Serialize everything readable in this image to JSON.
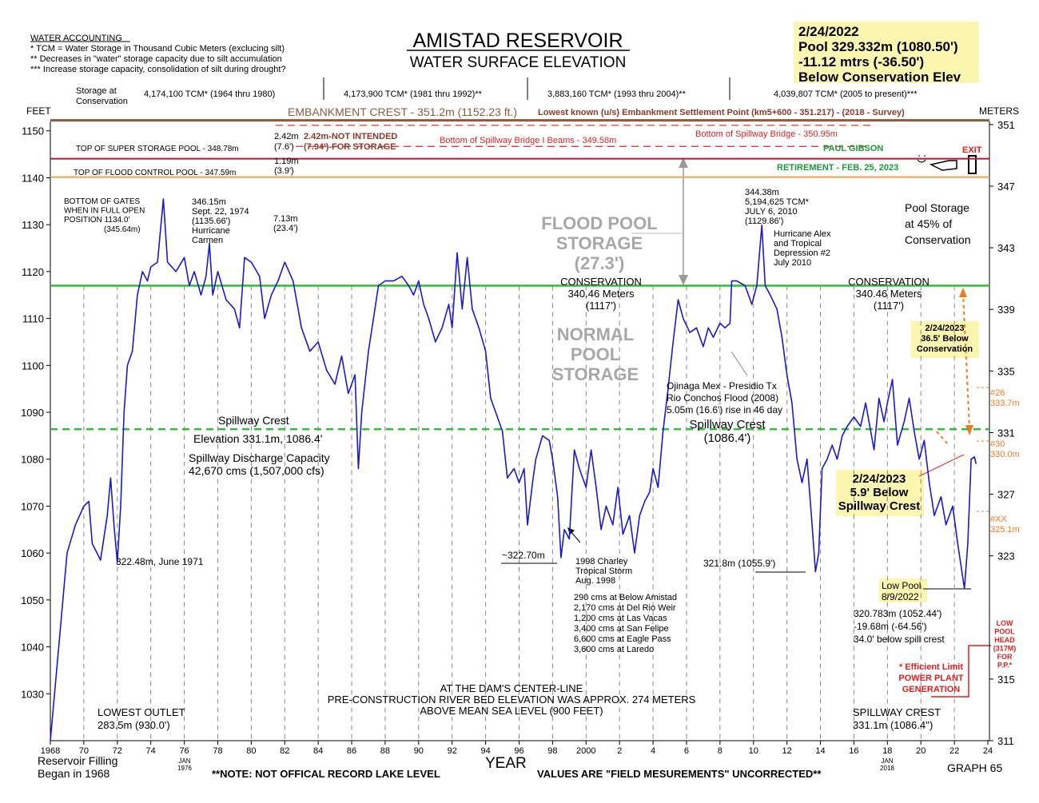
{
  "chart_data": {
    "type": "line",
    "title": "AMISTAD RESERVOIR",
    "subtitle": "WATER SURFACE ELEVATION",
    "x_label": "YEAR",
    "y_label": "FEET",
    "y2_label": "METERS",
    "xlim": [
      1968,
      2024
    ],
    "xticks": [
      1968,
      {
        "value": 1970,
        "label": "70"
      },
      {
        "value": 1972,
        "label": "72"
      },
      {
        "value": 1974,
        "label": "74"
      },
      {
        "value": 1976,
        "label": "76"
      },
      {
        "value": 1978,
        "label": "78"
      },
      {
        "value": 1980,
        "label": "80"
      },
      {
        "value": 1982,
        "label": "82"
      },
      {
        "value": 1984,
        "label": "84"
      },
      {
        "value": 1986,
        "label": "86"
      },
      {
        "value": 1988,
        "label": "88"
      },
      {
        "value": 1990,
        "label": "90"
      },
      {
        "value": 1992,
        "label": "92"
      },
      {
        "value": 1994,
        "label": "94"
      },
      {
        "value": 1996,
        "label": "96"
      },
      {
        "value": 1998,
        "label": "98"
      },
      2000,
      {
        "value": 2002,
        "label": "2"
      },
      {
        "value": 2004,
        "label": "4"
      },
      {
        "value": 2006,
        "label": "6"
      },
      {
        "value": 2008,
        "label": "8"
      },
      {
        "value": 2010,
        "label": "10"
      },
      {
        "value": 2012,
        "label": "12"
      },
      {
        "value": 2014,
        "label": "14"
      },
      {
        "value": 2016,
        "label": "16"
      },
      {
        "value": 2018,
        "label": "18"
      },
      {
        "value": 2020,
        "label": "20"
      },
      {
        "value": 2022,
        "label": "22"
      },
      {
        "value": 2024,
        "label": "24"
      }
    ],
    "ylim": [
      1020,
      1152
    ],
    "yticks": [
      1030,
      1040,
      1050,
      1060,
      1070,
      1080,
      1090,
      1100,
      1110,
      1120,
      1130,
      1140,
      1150
    ],
    "y2lim": [
      311,
      351.2
    ],
    "y2ticks": [
      311,
      315,
      323,
      327,
      331,
      335,
      339,
      343,
      347,
      351
    ],
    "grid": true,
    "x": [
      1968.0,
      1968.5,
      1969.0,
      1969.5,
      1970.0,
      1970.3,
      1970.5,
      1971.0,
      1971.4,
      1971.6,
      1971.8,
      1972.0,
      1972.2,
      1972.4,
      1972.6,
      1972.9,
      1973.2,
      1973.5,
      1973.8,
      1974.0,
      1974.4,
      1974.75,
      1975.0,
      1975.5,
      1976.0,
      1976.3,
      1976.6,
      1977.0,
      1977.3,
      1977.5,
      1977.7,
      1978.0,
      1978.5,
      1979.0,
      1979.3,
      1979.6,
      1980.0,
      1980.5,
      1980.8,
      1981.2,
      1981.6,
      1982.0,
      1982.5,
      1983.0,
      1983.5,
      1984.0,
      1984.5,
      1985.0,
      1985.4,
      1985.8,
      1986.2,
      1986.4,
      1986.6,
      1987.0,
      1987.3,
      1987.6,
      1988.0,
      1988.5,
      1989.0,
      1989.4,
      1989.7,
      1990.0,
      1990.3,
      1990.6,
      1991.0,
      1991.4,
      1991.8,
      1992.0,
      1992.3,
      1992.6,
      1992.9,
      1993.2,
      1993.6,
      1994.0,
      1994.3,
      1994.6,
      1995.0,
      1995.3,
      1995.7,
      1996.0,
      1996.3,
      1996.5,
      1996.8,
      1997.0,
      1997.4,
      1997.8,
      1998.0,
      1998.3,
      1998.5,
      1998.7,
      1999.0,
      1999.3,
      1999.6,
      2000.0,
      2000.3,
      2000.6,
      2000.9,
      2001.2,
      2001.6,
      2001.9,
      2002.2,
      2002.6,
      2002.9,
      2003.2,
      2003.5,
      2003.8,
      2004.0,
      2004.3,
      2004.6,
      2004.9,
      2005.2,
      2005.5,
      2005.8,
      2006.2,
      2006.6,
      2007.0,
      2007.3,
      2007.6,
      2008.0,
      2008.3,
      2008.6,
      2008.7,
      2009.0,
      2009.5,
      2009.9,
      2010.2,
      2010.5,
      2010.7,
      2011.0,
      2011.4,
      2011.7,
      2012.0,
      2012.3,
      2012.6,
      2012.9,
      2013.2,
      2013.5,
      2013.7,
      2013.9,
      2014.1,
      2014.4,
      2014.7,
      2015.0,
      2015.3,
      2015.6,
      2016.0,
      2016.4,
      2016.7,
      2017.0,
      2017.2,
      2017.5,
      2017.8,
      2018.0,
      2018.3,
      2018.6,
      2019.0,
      2019.3,
      2019.6,
      2019.9,
      2020.2,
      2020.5,
      2020.8,
      2021.2,
      2021.5,
      2021.9,
      2022.2,
      2022.6,
      2022.8,
      2023.0,
      2023.2,
      2023.3
    ],
    "series": [
      {
        "color": "#1a1acc",
        "values": [
          1020,
          1040,
          1060,
          1066,
          1070,
          1071,
          1062,
          1058.5,
          1068,
          1076,
          1066,
          1058,
          1070,
          1090,
          1100,
          1103,
          1115,
          1120,
          1118,
          1121,
          1122,
          1135.5,
          1122,
          1120,
          1123,
          1117,
          1120,
          1115,
          1119,
          1126,
          1115,
          1120,
          1114,
          1112,
          1108,
          1123,
          1122,
          1119,
          1110,
          1115,
          1118,
          1122,
          1118,
          1108,
          1103,
          1105,
          1099,
          1096,
          1102,
          1094,
          1098,
          1078,
          1090,
          1103,
          1110,
          1117,
          1118,
          1118,
          1119,
          1117,
          1115,
          1118,
          1113,
          1110,
          1105,
          1108,
          1113,
          1108,
          1124,
          1112,
          1123,
          1112,
          1108,
          1103,
          1093,
          1090,
          1086,
          1076,
          1078,
          1075,
          1078,
          1066,
          1075,
          1080,
          1085,
          1084,
          1080,
          1072,
          1059,
          1065,
          1063,
          1082,
          1078,
          1074,
          1082,
          1074,
          1065,
          1070,
          1066,
          1074,
          1064,
          1068,
          1060,
          1068,
          1071,
          1073,
          1078,
          1074,
          1086,
          1095,
          1105,
          1114,
          1110,
          1107,
          1108,
          1104,
          1108,
          1106,
          1109,
          1108,
          1109,
          1118,
          1118,
          1117,
          1113,
          1117,
          1129.9,
          1117,
          1115,
          1112,
          1106,
          1098,
          1092,
          1080,
          1075,
          1080,
          1066,
          1056,
          1060,
          1078,
          1080,
          1083,
          1080,
          1085,
          1087,
          1089,
          1087,
          1092,
          1086,
          1082,
          1093,
          1088,
          1092,
          1097,
          1083,
          1088,
          1093,
          1086,
          1080,
          1084,
          1075,
          1068,
          1072,
          1066,
          1070,
          1062,
          1052.4,
          1062,
          1080,
          1080.5,
          1079
        ]
      }
    ],
    "reference_lines": [
      {
        "label": "EMBANKMENT CREST - 351.2m (1152.23 ft.)",
        "value": 1152.23,
        "color": "#8b5a3c",
        "dash": false
      },
      {
        "label": "TOP  OF SUPER STORAGE POOL - 348.78m",
        "value": 348.78,
        "axis": "y2",
        "color": "#c8102e",
        "dash": false
      },
      {
        "label": "TOP OF FLOOD CONTROL POOL - 347.59m",
        "value": 347.59,
        "axis": "y2",
        "color": "#f0a050",
        "dash": false
      },
      {
        "label": "Bottom of Spillway Bridge - 350.95m",
        "value": 350.95,
        "axis": "y2",
        "color": "#dd2222",
        "dash": true
      },
      {
        "label": "Bottom of Spillway Bridge I Beams - 349.58m",
        "value": 349.58,
        "axis": "y2",
        "color": "#dd2222",
        "dash": true
      },
      {
        "value": 1117,
        "color": "#33bb33",
        "dash": false
      },
      {
        "value": 1086.4,
        "color": "#33bb33",
        "dash": true
      }
    ],
    "annotations": [
      [
        "WATER ACCOUNTING",
        "* TCM = Water Storage in Thousand Cubic Meters (exclucing silt)",
        "**   Decreases in \"water\" storage capacity due to silt accumulation",
        "*** Increase storage capacity, consolidation of silt during drought?"
      ],
      [
        "2/24/2022",
        "Pool 329.332m (1080.50')",
        "-11.12 mtrs (-36.50')",
        "Below Conservation Elev"
      ],
      [
        "Storage at",
        "Conservation"
      ],
      [
        "4,174,100 TCM* (1964 thru 1980)"
      ],
      [
        "4,173,900 TCM* (1981 thru 1992)**"
      ],
      [
        "3,883,160 TCM* (1993 thru 2004)**"
      ],
      [
        "4,039,807  TCM* (2005 to present)***"
      ],
      [
        "Lowest known (u/s) Embankment Settlement Point (km5+600 - 351.217) - (2018 - Survey)"
      ],
      [
        "2.42m",
        "(7.6')"
      ],
      [
        "2.42m-NOT INTENDED",
        "(7.94')-FOR STORAGE"
      ],
      [
        "1.19m",
        "(3.9')"
      ],
      [
        "PAUL GIBSON"
      ],
      [
        "RETIREMENT - FEB. 25, 2023"
      ],
      [
        "EXIT"
      ],
      [
        "BOTTOM OF GATES",
        "WHEN IN FULL OPEN",
        "POSITION 1134.0'"
      ],
      [
        "(345.64m)"
      ],
      [
        "346.15m",
        "Sept. 22, 1974",
        "(1135.66')",
        "Hurricane",
        "Carmen"
      ],
      [
        "7.13m",
        "(23.4')"
      ],
      [
        "FLOOD POOL",
        "STORAGE",
        "(27.3')"
      ],
      [
        "CONSERVATION",
        "340.46 Meters",
        "(1117')"
      ],
      [
        "CONSERVATION",
        "340.46 Meters",
        "(1117')"
      ],
      [
        "NORMAL",
        "POOL",
        "STORAGE"
      ],
      [
        "344.38m",
        "5,194,625 TCM*",
        "JULY 6, 2010",
        "(1129.86')"
      ],
      [
        "Hurricane Alex",
        "and Tropical",
        "Depression  #2",
        "July 2010"
      ],
      [
        "Pool Storage",
        "at 45% of",
        "Conservation"
      ],
      [
        "2/24/2023",
        "36.5' Below",
        "Conservation"
      ],
      [
        "Ojinaga Mex - Presidio Tx",
        "Rio Conchos Flood (2008)",
        "5.05m (16.6') rise in 46 day"
      ],
      [
        "Spillway Crest",
        "(1086.4')"
      ],
      [
        "Spillway Crest"
      ],
      [
        "Elevation 331.1m, 1086.4'"
      ],
      [
        "Spillway Discharge Capacity",
        "42,670 cms (1,507,000 cfs)"
      ],
      [
        "#26",
        "333.7m"
      ],
      [
        "#30",
        "330.0m"
      ],
      [
        "#XX",
        "325.1m"
      ],
      [
        "2/24/2023",
        "5.9' Below",
        "Spillway Crest"
      ],
      [
        "322.48m, June 1971"
      ],
      [
        "~322.70m"
      ],
      [
        "1998 Charley",
        "Tropical Storm",
        "Aug. 1998"
      ],
      [
        "290 cms at Below Amistad",
        "2,170 cms at Del Rio Weir",
        "1,200 cms at Las Vacas",
        "3,400 cms at San Felipe",
        "6,600 cms at Eagle Pass",
        "3,600 cms at Laredo"
      ],
      [
        "321.8m (1055.9')"
      ],
      [
        "Low Pool",
        "8/9/2022"
      ],
      [
        "320.783m (1052.44')",
        "-19.68m        (-64.56')",
        "34.0' below spill crest"
      ],
      [
        "LOW",
        "POOL",
        "HEAD",
        "(317M)",
        "FOR",
        "P.P.*"
      ],
      [
        "* Efficient Limit",
        "POWER PLANT",
        "GENERATION"
      ],
      [
        "AT THE DAM'S CENTER-LINE",
        "PRE-CONSTRUCTION RIVER BED ELEVATION WAS APPROX. 274 METERS",
        "ABOVE MEAN SEA LEVEL (900 FEET)"
      ],
      [
        "LOWEST OUTLET",
        "283.5m (930.0')"
      ],
      [
        "SPILLWAY CREST",
        "331.1m (1086.4'')"
      ],
      [
        "Reservoir Filling",
        "Began in 1968"
      ],
      [
        "JAN",
        "1976"
      ],
      [
        "JAN",
        "2018"
      ],
      [
        "**NOTE:  NOT OFFICAL RECORD LAKE LEVEL"
      ],
      [
        "VALUES ARE \"FIELD MESUREMENTS\" UNCORRECTED**"
      ],
      [
        "GRAPH 65"
      ]
    ]
  }
}
